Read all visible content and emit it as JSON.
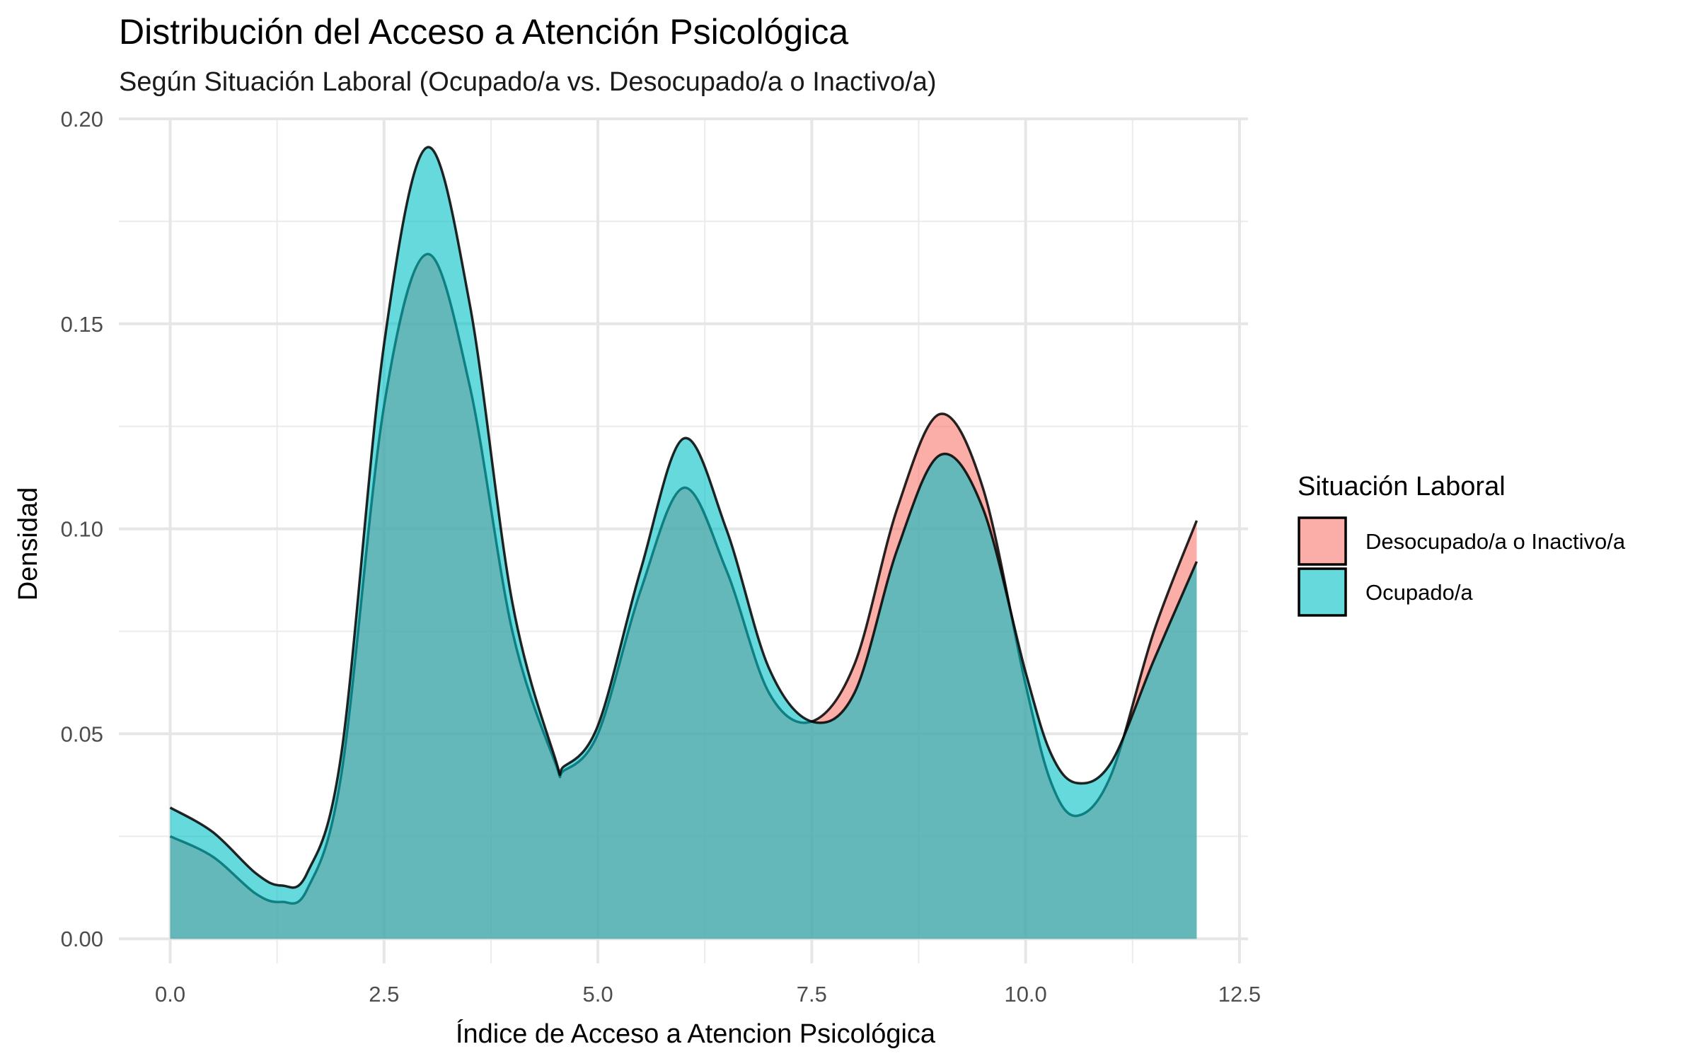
{
  "chart_data": {
    "type": "area",
    "title": "Distribución del Acceso a Atención Psicológica",
    "subtitle": "Según Situación Laboral (Ocupado/a vs. Desocupado/a o Inactivo/a)",
    "xlabel": "Índice de Acceso a Atencion Psicológica",
    "ylabel": "Densidad",
    "xlim": [
      -0.6,
      12.6
    ],
    "ylim": [
      -0.006,
      0.2
    ],
    "x_ticks": [
      0.0,
      2.5,
      5.0,
      7.5,
      10.0,
      12.5
    ],
    "x_tick_labels": [
      "0.0",
      "2.5",
      "5.0",
      "7.5",
      "10.0",
      "12.5"
    ],
    "y_ticks": [
      0.0,
      0.05,
      0.1,
      0.15,
      0.2
    ],
    "y_tick_labels": [
      "0.00",
      "0.05",
      "0.10",
      "0.15",
      "0.20"
    ],
    "grid": true,
    "legend": {
      "title": "Situación Laboral",
      "position": "right"
    },
    "series": [
      {
        "name": "Desocupado/a o Inactivo/a",
        "color": "#F8766D",
        "x": [
          0.0,
          0.5,
          1.0,
          1.3,
          1.6,
          2.0,
          2.5,
          3.0,
          3.5,
          4.0,
          4.5,
          4.6,
          5.0,
          5.5,
          6.0,
          6.5,
          7.0,
          7.5,
          8.0,
          8.5,
          9.0,
          9.5,
          10.0,
          10.3,
          10.6,
          11.0,
          11.5,
          12.0
        ],
        "y": [
          0.025,
          0.02,
          0.011,
          0.009,
          0.012,
          0.04,
          0.13,
          0.167,
          0.135,
          0.075,
          0.043,
          0.041,
          0.05,
          0.085,
          0.11,
          0.09,
          0.06,
          0.053,
          0.067,
          0.105,
          0.128,
          0.11,
          0.062,
          0.038,
          0.03,
          0.04,
          0.075,
          0.102
        ]
      },
      {
        "name": "Ocupado/a",
        "color": "#00BFC4",
        "x": [
          0.0,
          0.5,
          1.0,
          1.3,
          1.6,
          2.0,
          2.5,
          3.0,
          3.5,
          4.0,
          4.5,
          4.6,
          5.0,
          5.5,
          6.0,
          6.5,
          7.0,
          7.5,
          8.0,
          8.5,
          9.0,
          9.5,
          10.0,
          10.3,
          10.6,
          11.0,
          11.5,
          12.0
        ],
        "y": [
          0.032,
          0.026,
          0.016,
          0.013,
          0.016,
          0.045,
          0.145,
          0.193,
          0.155,
          0.082,
          0.044,
          0.042,
          0.052,
          0.09,
          0.122,
          0.1,
          0.066,
          0.053,
          0.06,
          0.095,
          0.118,
          0.105,
          0.065,
          0.045,
          0.038,
          0.043,
          0.068,
          0.092
        ]
      }
    ]
  }
}
